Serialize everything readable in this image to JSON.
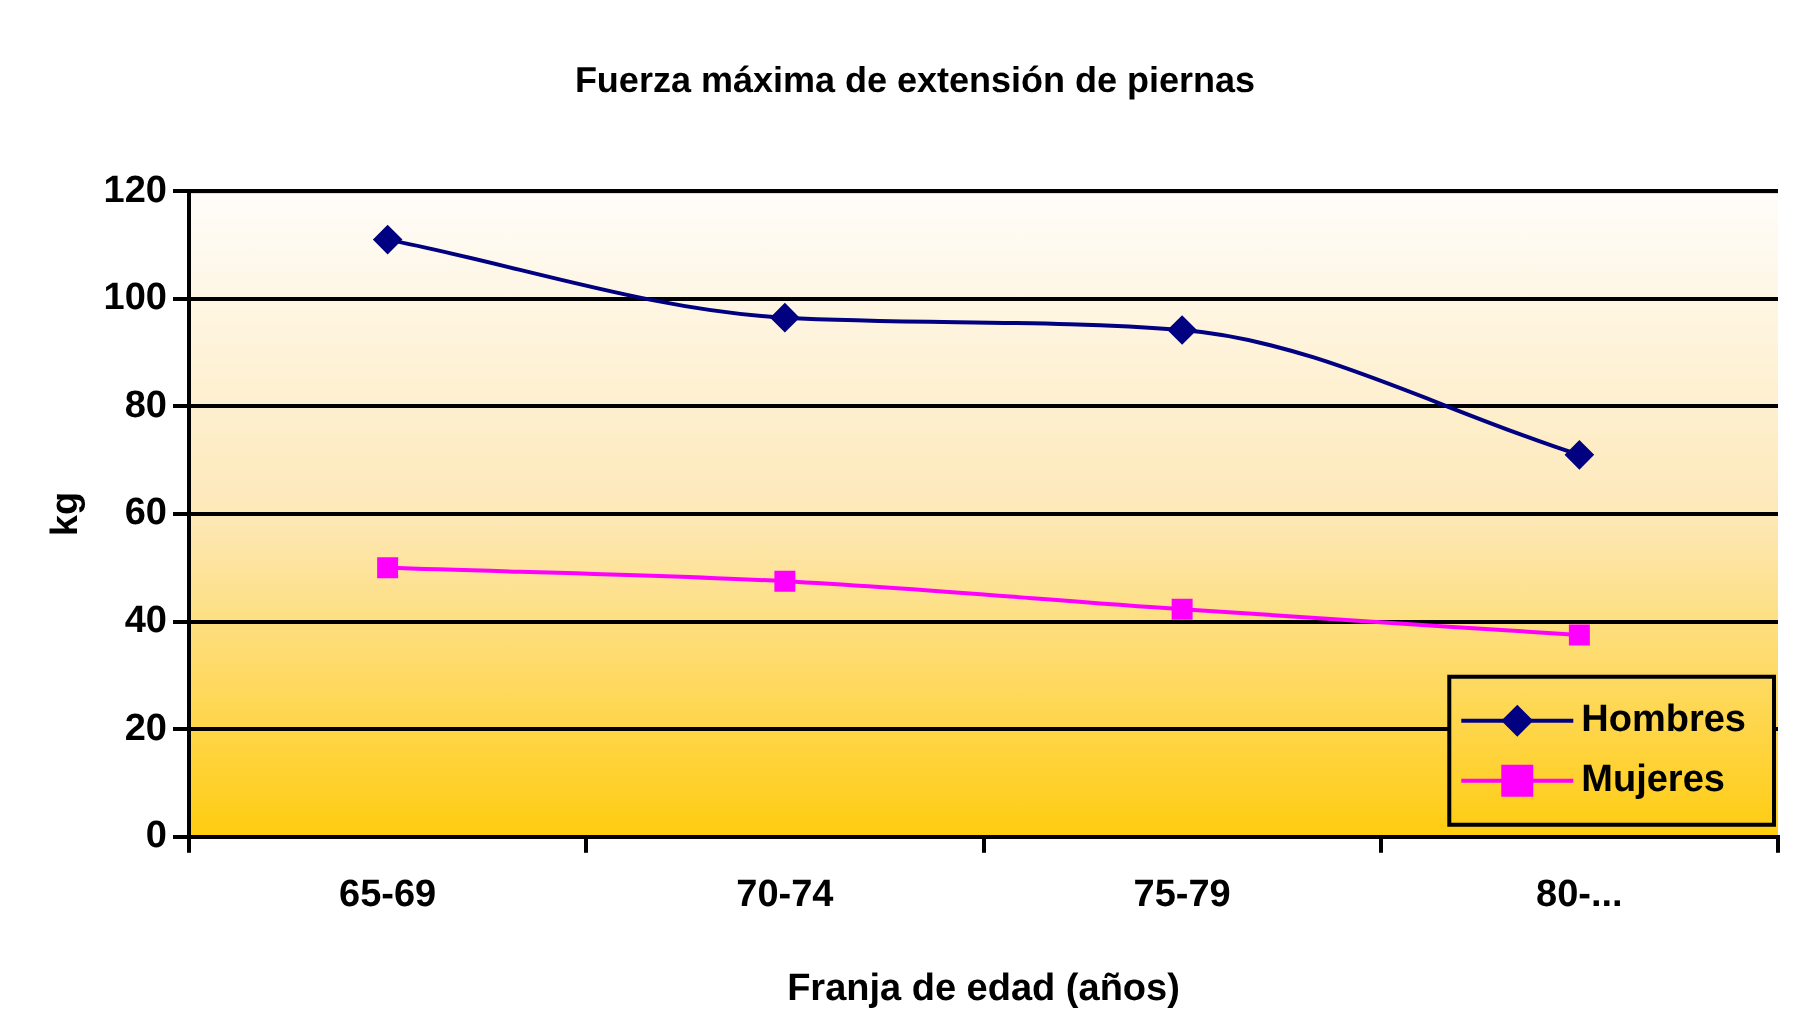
{
  "chart_data": {
    "type": "line",
    "title": "Fuerza máxima de extensión de piernas",
    "xlabel": "Franja de edad (años)",
    "ylabel": "kg",
    "categories": [
      "65-69",
      "70-74",
      "75-79",
      "80-..."
    ],
    "series": [
      {
        "name": "Hombres",
        "color": "#000080",
        "marker": "diamond",
        "values": [
          111,
          96.5,
          94.2,
          71
        ]
      },
      {
        "name": "Mujeres",
        "color": "#ff00ff",
        "marker": "square",
        "values": [
          50,
          47.5,
          42.3,
          37.5
        ]
      }
    ],
    "ylim": [
      0,
      120
    ],
    "yticks": [
      0,
      20,
      40,
      60,
      80,
      100,
      120
    ],
    "grid": "y",
    "legend": "bottom right",
    "line_style": "solid"
  }
}
